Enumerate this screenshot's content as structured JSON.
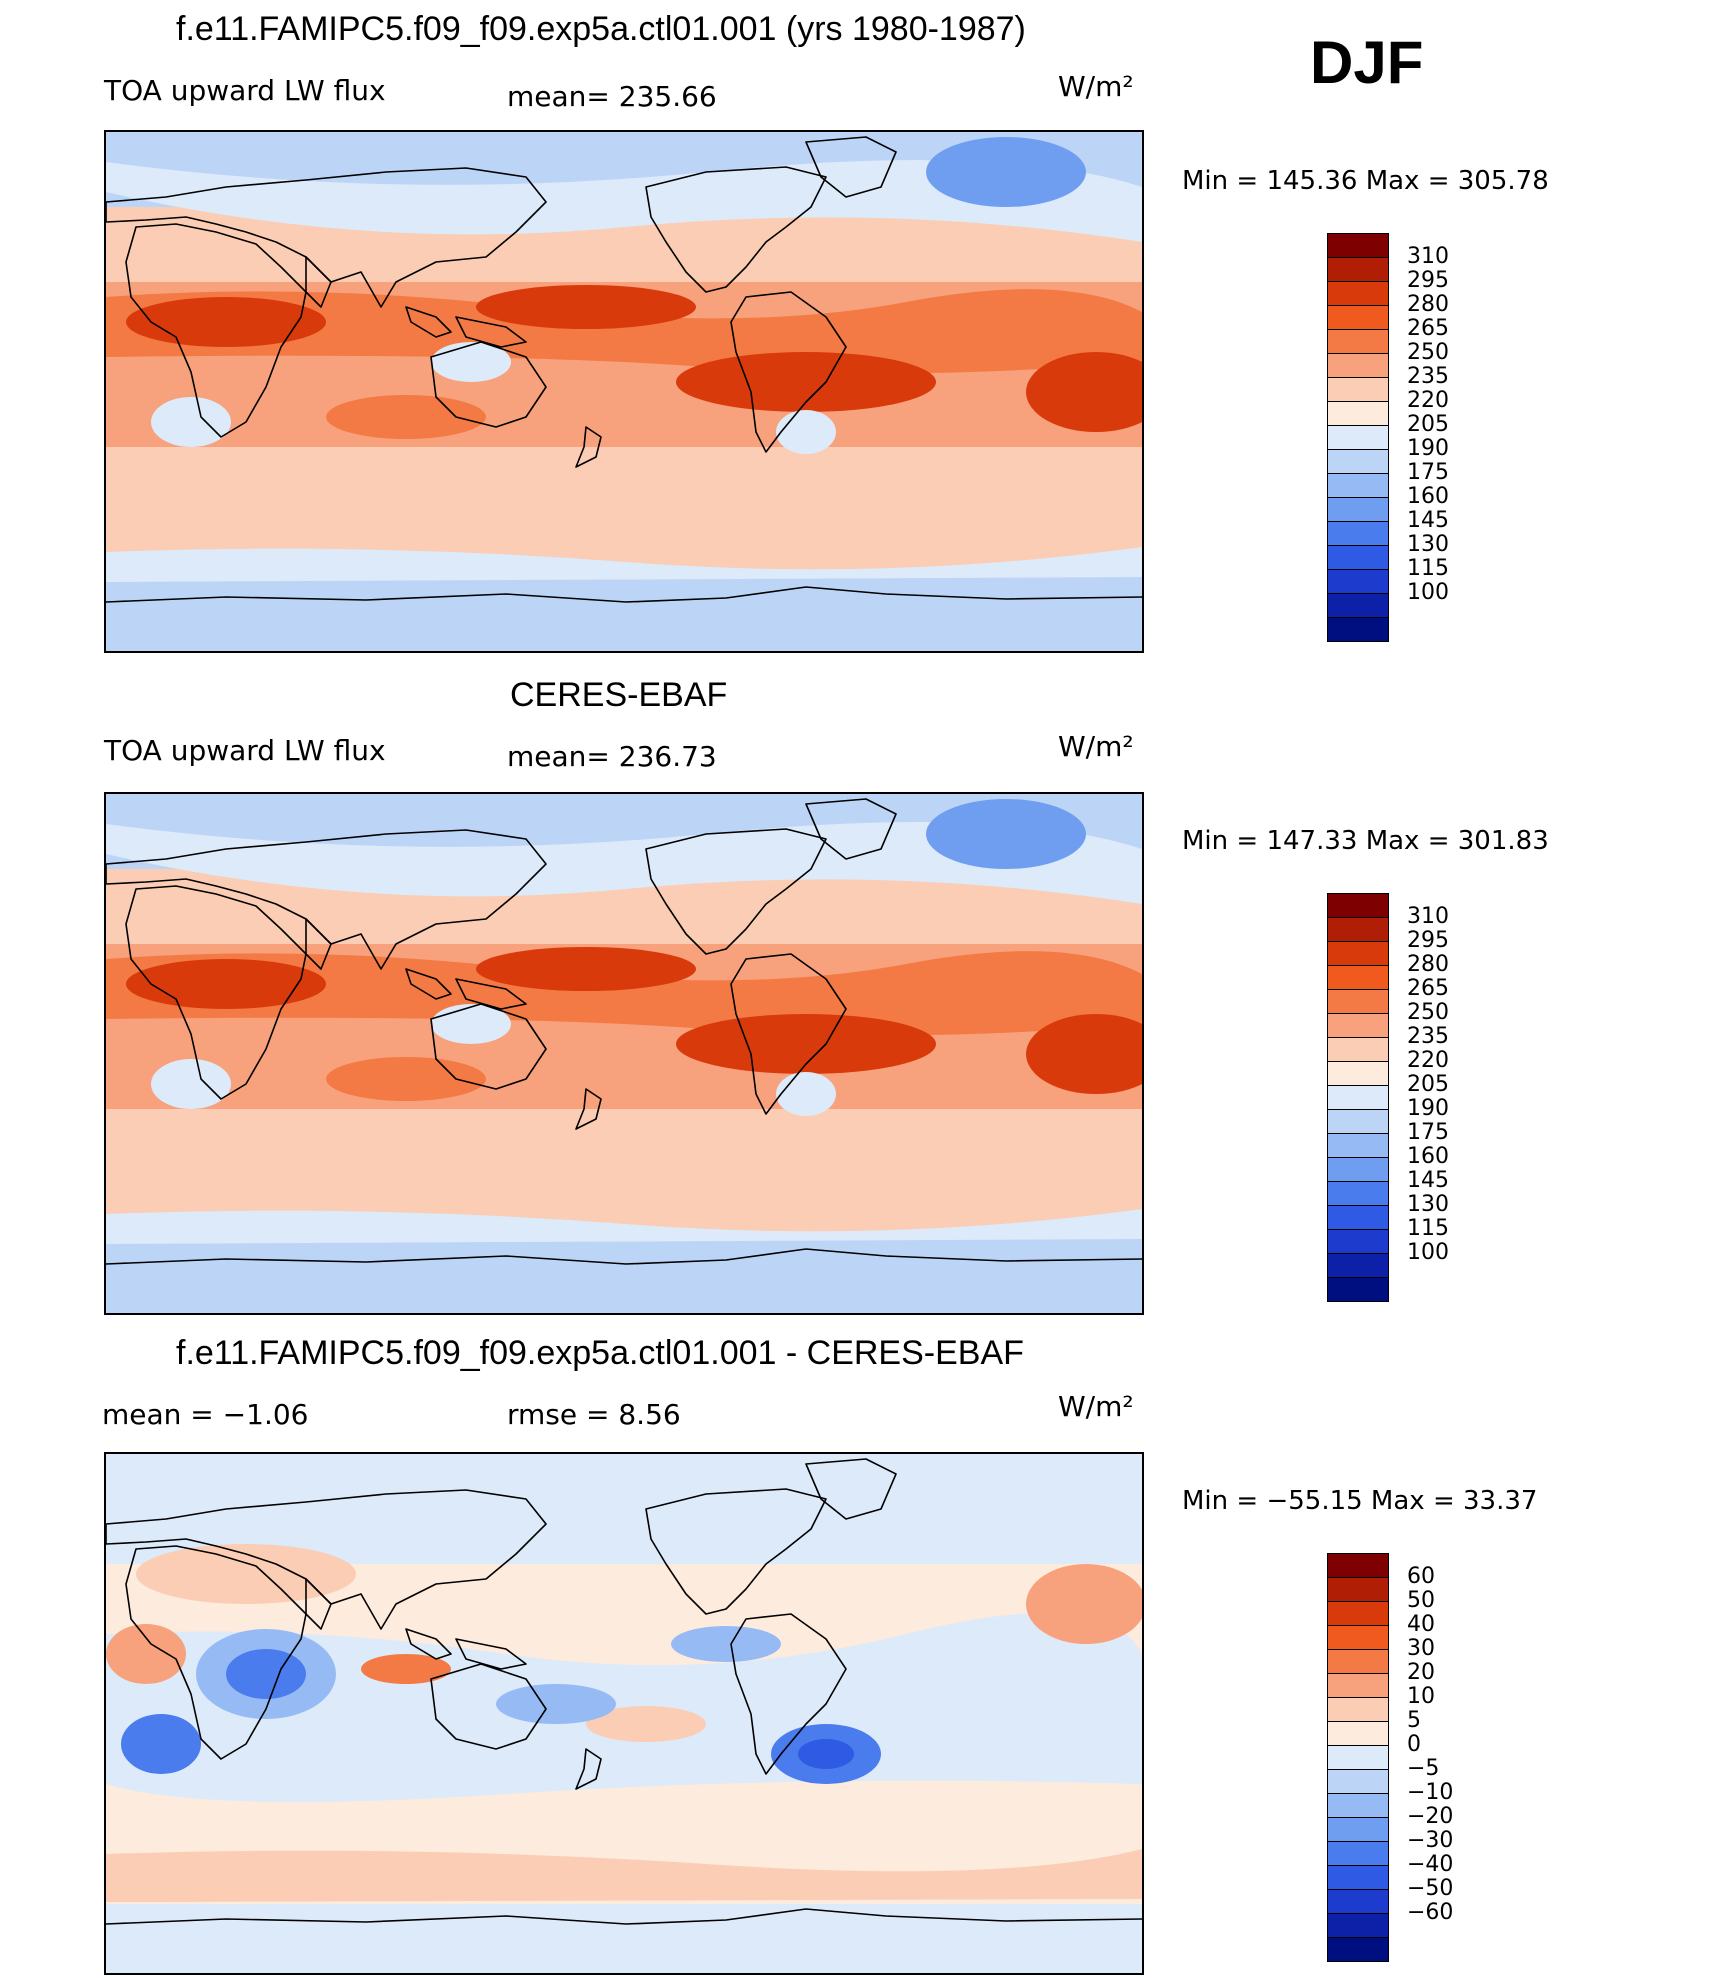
{
  "season": "DJF",
  "panels": [
    {
      "title": "f.e11.FAMIPC5.f09_f09.exp5a.ctl01.001 (yrs 1980-1987)",
      "left_label": "TOA upward LW flux",
      "center_label": "mean= 235.66",
      "units": "W/m²",
      "minmax": "Min  =  145.36  Max  =  305.78",
      "map_kind": "abs",
      "colorbar": {
        "labels": [
          "310",
          "295",
          "280",
          "265",
          "250",
          "235",
          "220",
          "205",
          "190",
          "175",
          "160",
          "145",
          "130",
          "115",
          "100"
        ],
        "colors": [
          "#7f0000",
          "#b01e05",
          "#d93a0c",
          "#f05a1e",
          "#f47a45",
          "#f7a27c",
          "#fbcdb4",
          "#fdebdd",
          "#dceaf9",
          "#bcd5f7",
          "#96bbf4",
          "#6f9ef1",
          "#4a7cee",
          "#2f5be4",
          "#1d3bcc",
          "#0d20a8",
          "#000f80"
        ]
      },
      "map_colors": {
        "ocean_land_base": "#fbcdb4",
        "polar": "#bcd5f7",
        "midlat": "#dceaf9",
        "warm1": "#f7a27c",
        "warm2": "#f47a45",
        "warm3": "#d93a0c",
        "cool_deep": "#6f9ef1"
      }
    },
    {
      "title": "CERES-EBAF",
      "left_label": "TOA upward LW flux",
      "center_label": "mean= 236.73",
      "units": "W/m²",
      "minmax": "Min  =  147.33  Max  =  301.83",
      "map_kind": "abs",
      "colorbar": {
        "labels": [
          "310",
          "295",
          "280",
          "265",
          "250",
          "235",
          "220",
          "205",
          "190",
          "175",
          "160",
          "145",
          "130",
          "115",
          "100"
        ],
        "colors": [
          "#7f0000",
          "#b01e05",
          "#d93a0c",
          "#f05a1e",
          "#f47a45",
          "#f7a27c",
          "#fbcdb4",
          "#fdebdd",
          "#dceaf9",
          "#bcd5f7",
          "#96bbf4",
          "#6f9ef1",
          "#4a7cee",
          "#2f5be4",
          "#1d3bcc",
          "#0d20a8",
          "#000f80"
        ]
      },
      "map_colors": {
        "ocean_land_base": "#fbcdb4",
        "polar": "#bcd5f7",
        "midlat": "#dceaf9",
        "warm1": "#f7a27c",
        "warm2": "#f47a45",
        "warm3": "#d93a0c",
        "cool_deep": "#6f9ef1"
      }
    },
    {
      "title": "f.e11.FAMIPC5.f09_f09.exp5a.ctl01.001 - CERES-EBAF",
      "left_label": "mean =   −1.06",
      "center_label": "rmse =    8.56",
      "units": "W/m²",
      "minmax": "Min  =  −55.15  Max  =    33.37",
      "map_kind": "diff",
      "colorbar": {
        "labels": [
          "60",
          "50",
          "40",
          "30",
          "20",
          "10",
          "5",
          "0",
          "−5",
          "−10",
          "−20",
          "−30",
          "−40",
          "−50",
          "−60"
        ],
        "colors": [
          "#7f0000",
          "#b01e05",
          "#d93a0c",
          "#f05a1e",
          "#f47a45",
          "#f7a27c",
          "#fbcdb4",
          "#fdebdd",
          "#dceaf9",
          "#bcd5f7",
          "#96bbf4",
          "#6f9ef1",
          "#4a7cee",
          "#2f5be4",
          "#1d3bcc",
          "#0d20a8",
          "#000f80"
        ]
      },
      "map_colors": {
        "base_pos": "#fdebdd",
        "base_neg": "#dceaf9",
        "pos1": "#fbcdb4",
        "pos2": "#f7a27c",
        "pos3": "#f47a45",
        "neg1": "#bcd5f7",
        "neg2": "#96bbf4",
        "neg3": "#4a7cee",
        "neg4": "#2f5be4"
      }
    }
  ]
}
